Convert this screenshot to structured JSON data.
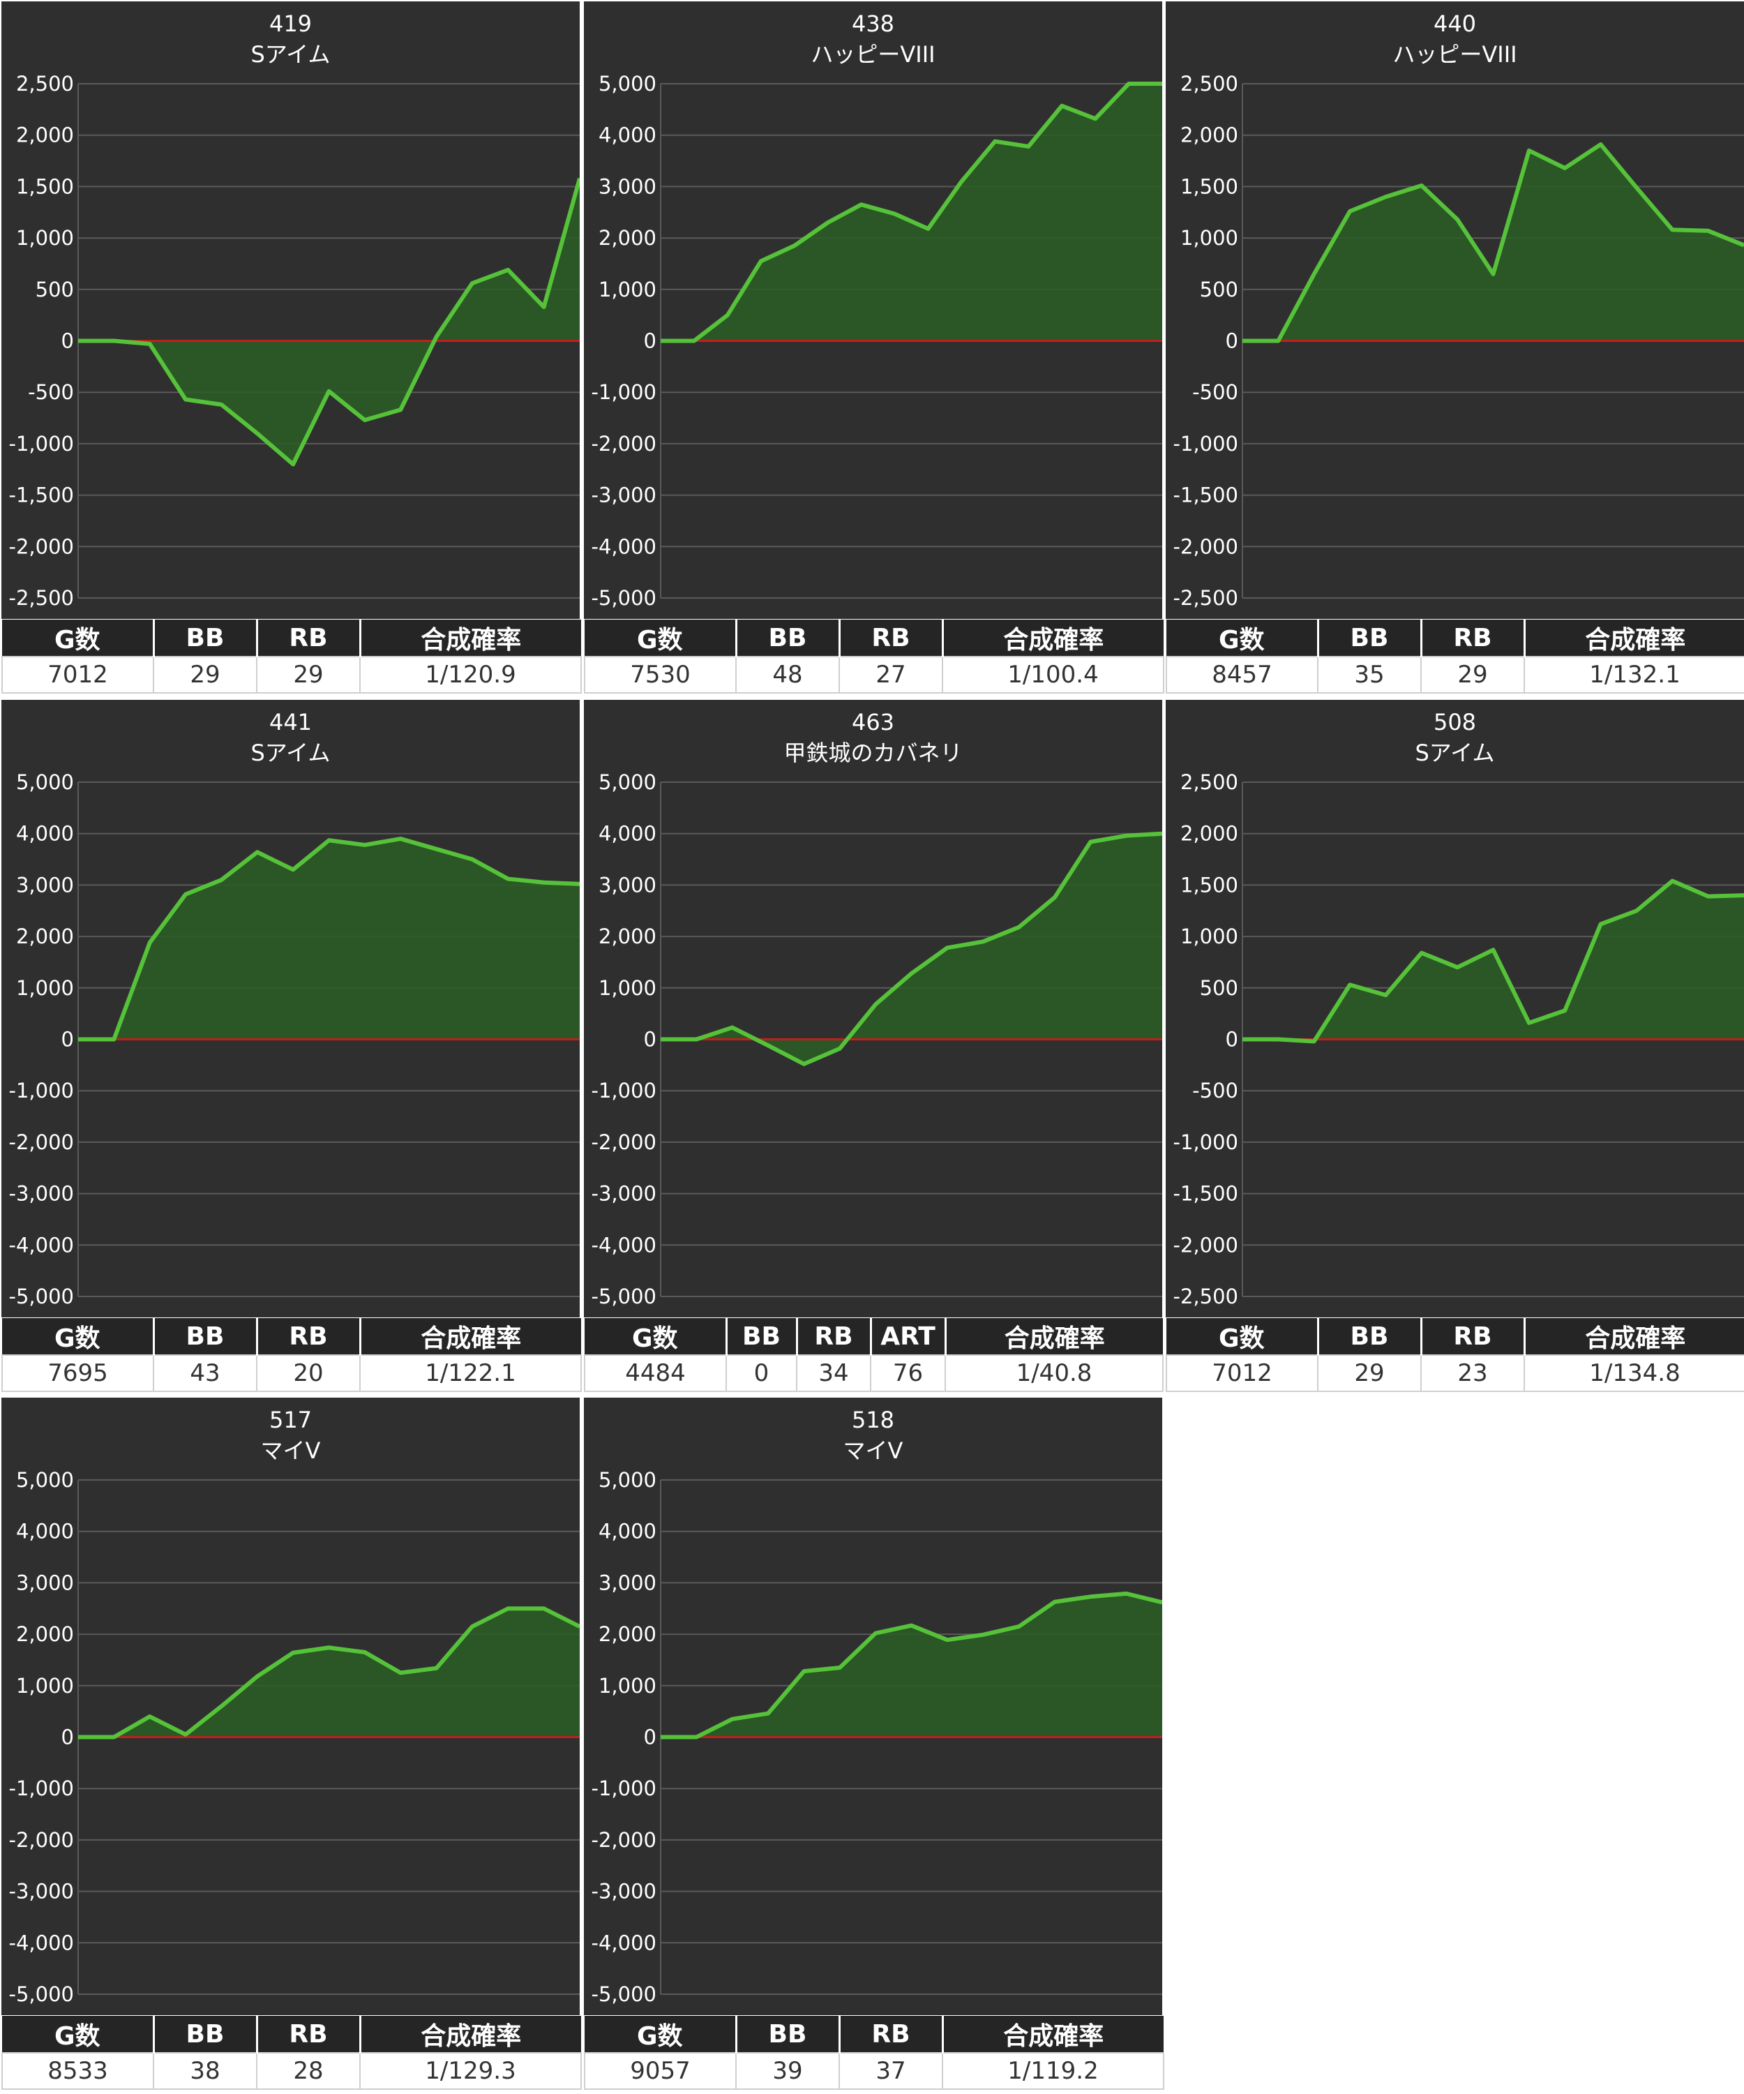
{
  "colors": {
    "panel_bg": "#2f2f2f",
    "grid": "#5a5a5a",
    "zero_line": "#c0201c",
    "series_line": "#56c23a",
    "series_fill": "#2a5e24"
  },
  "chart_data": [
    {
      "type": "area",
      "title": "419",
      "subtitle": "Sアイム",
      "ylim": [
        -2500,
        2500
      ],
      "yticks": [
        "2,500",
        "2,000",
        "1,500",
        "1,000",
        "500",
        "0",
        "-500",
        "-1,000",
        "-1,500",
        "-2,000",
        "-2,500"
      ],
      "grid": true,
      "x": [
        0,
        1,
        2,
        3,
        4,
        5,
        6,
        7,
        8,
        9,
        10,
        11,
        12,
        13,
        14
      ],
      "values": [
        0,
        0,
        -30,
        -570,
        -620,
        -900,
        -1200,
        -490,
        -770,
        -670,
        40,
        560,
        690,
        330,
        1580
      ],
      "stats_headers": [
        "G数",
        "BB",
        "RB",
        "合成確率"
      ],
      "stats_values": [
        "7012",
        "29",
        "29",
        "1/120.9"
      ]
    },
    {
      "type": "area",
      "title": "438",
      "subtitle": "ハッピーVIII",
      "ylim": [
        -5000,
        5000
      ],
      "yticks": [
        "5,000",
        "4,000",
        "3,000",
        "2,000",
        "1,000",
        "0",
        "-1,000",
        "-2,000",
        "-3,000",
        "-4,000",
        "-5,000"
      ],
      "grid": true,
      "x": [
        0,
        1,
        2,
        3,
        4,
        5,
        6,
        7,
        8,
        9,
        10,
        11,
        12,
        13,
        14,
        15
      ],
      "values": [
        0,
        0,
        500,
        1550,
        1850,
        2300,
        2650,
        2470,
        2180,
        3100,
        3880,
        3780,
        4570,
        4320,
        5000,
        5000
      ],
      "stats_headers": [
        "G数",
        "BB",
        "RB",
        "合成確率"
      ],
      "stats_values": [
        "7530",
        "48",
        "27",
        "1/100.4"
      ]
    },
    {
      "type": "area",
      "title": "440",
      "subtitle": "ハッピーVIII",
      "ylim": [
        -2500,
        2500
      ],
      "yticks": [
        "2,500",
        "2,000",
        "1,500",
        "1,000",
        "500",
        "0",
        "-500",
        "-1,000",
        "-1,500",
        "-2,000",
        "-2,500"
      ],
      "grid": true,
      "x": [
        0,
        1,
        2,
        3,
        4,
        5,
        6,
        7,
        8,
        9,
        10,
        11,
        12,
        13,
        14
      ],
      "values": [
        0,
        0,
        650,
        1260,
        1400,
        1510,
        1180,
        650,
        1850,
        1680,
        1910,
        1490,
        1080,
        1070,
        930
      ],
      "stats_headers": [
        "G数",
        "BB",
        "RB",
        "合成確率"
      ],
      "stats_values": [
        "8457",
        "35",
        "29",
        "1/132.1"
      ]
    },
    {
      "type": "area",
      "title": "441",
      "subtitle": "Sアイム",
      "ylim": [
        -5000,
        5000
      ],
      "yticks": [
        "5,000",
        "4,000",
        "3,000",
        "2,000",
        "1,000",
        "0",
        "-1,000",
        "-2,000",
        "-3,000",
        "-4,000",
        "-5,000"
      ],
      "grid": true,
      "x": [
        0,
        1,
        2,
        3,
        4,
        5,
        6,
        7,
        8,
        9,
        10,
        11,
        12,
        13,
        14
      ],
      "values": [
        0,
        0,
        1880,
        2820,
        3100,
        3640,
        3300,
        3870,
        3780,
        3900,
        3700,
        3500,
        3120,
        3050,
        3020
      ],
      "stats_headers": [
        "G数",
        "BB",
        "RB",
        "合成確率"
      ],
      "stats_values": [
        "7695",
        "43",
        "20",
        "1/122.1"
      ]
    },
    {
      "type": "area",
      "title": "463",
      "subtitle": "甲鉄城のカバネリ",
      "ylim": [
        -5000,
        5000
      ],
      "yticks": [
        "5,000",
        "4,000",
        "3,000",
        "2,000",
        "1,000",
        "0",
        "-1,000",
        "-2,000",
        "-3,000",
        "-4,000",
        "-5,000"
      ],
      "grid": true,
      "x": [
        0,
        1,
        2,
        3,
        4,
        5,
        6,
        7,
        8,
        9,
        10,
        11,
        12,
        13,
        14
      ],
      "values": [
        0,
        0,
        230,
        -120,
        -480,
        -180,
        680,
        1280,
        1780,
        1900,
        2180,
        2760,
        3840,
        3960,
        4000
      ],
      "stats_headers": [
        "G数",
        "BB",
        "RB",
        "ART",
        "合成確率"
      ],
      "stats_values": [
        "4484",
        "0",
        "34",
        "76",
        "1/40.8"
      ]
    },
    {
      "type": "area",
      "title": "508",
      "subtitle": "Sアイム",
      "ylim": [
        -2500,
        2500
      ],
      "yticks": [
        "2,500",
        "2,000",
        "1,500",
        "1,000",
        "500",
        "0",
        "-500",
        "-1,000",
        "-1,500",
        "-2,000",
        "-2,500"
      ],
      "grid": true,
      "x": [
        0,
        1,
        2,
        3,
        4,
        5,
        6,
        7,
        8,
        9,
        10,
        11,
        12,
        13,
        14
      ],
      "values": [
        0,
        0,
        -20,
        530,
        430,
        840,
        700,
        870,
        160,
        280,
        1120,
        1250,
        1540,
        1390,
        1400
      ],
      "stats_headers": [
        "G数",
        "BB",
        "RB",
        "合成確率"
      ],
      "stats_values": [
        "7012",
        "29",
        "23",
        "1/134.8"
      ]
    },
    {
      "type": "area",
      "title": "517",
      "subtitle": "マイV",
      "ylim": [
        -5000,
        5000
      ],
      "yticks": [
        "5,000",
        "4,000",
        "3,000",
        "2,000",
        "1,000",
        "0",
        "-1,000",
        "-2,000",
        "-3,000",
        "-4,000",
        "-5,000"
      ],
      "grid": true,
      "x": [
        0,
        1,
        2,
        3,
        4,
        5,
        6,
        7,
        8,
        9,
        10,
        11,
        12,
        13,
        14
      ],
      "values": [
        0,
        0,
        400,
        50,
        600,
        1180,
        1640,
        1740,
        1650,
        1250,
        1340,
        2150,
        2500,
        2500,
        2150
      ],
      "stats_headers": [
        "G数",
        "BB",
        "RB",
        "合成確率"
      ],
      "stats_values": [
        "8533",
        "38",
        "28",
        "1/129.3"
      ]
    },
    {
      "type": "area",
      "title": "518",
      "subtitle": "マイV",
      "ylim": [
        -5000,
        5000
      ],
      "yticks": [
        "5,000",
        "4,000",
        "3,000",
        "2,000",
        "1,000",
        "0",
        "-1,000",
        "-2,000",
        "-3,000",
        "-4,000",
        "-5,000"
      ],
      "grid": true,
      "x": [
        0,
        1,
        2,
        3,
        4,
        5,
        6,
        7,
        8,
        9,
        10,
        11,
        12,
        13,
        14
      ],
      "values": [
        0,
        0,
        350,
        460,
        1280,
        1350,
        2020,
        2170,
        1890,
        1990,
        2150,
        2630,
        2730,
        2790,
        2620
      ],
      "stats_headers": [
        "G数",
        "BB",
        "RB",
        "合成確率"
      ],
      "stats_values": [
        "9057",
        "39",
        "37",
        "1/119.2"
      ]
    }
  ]
}
